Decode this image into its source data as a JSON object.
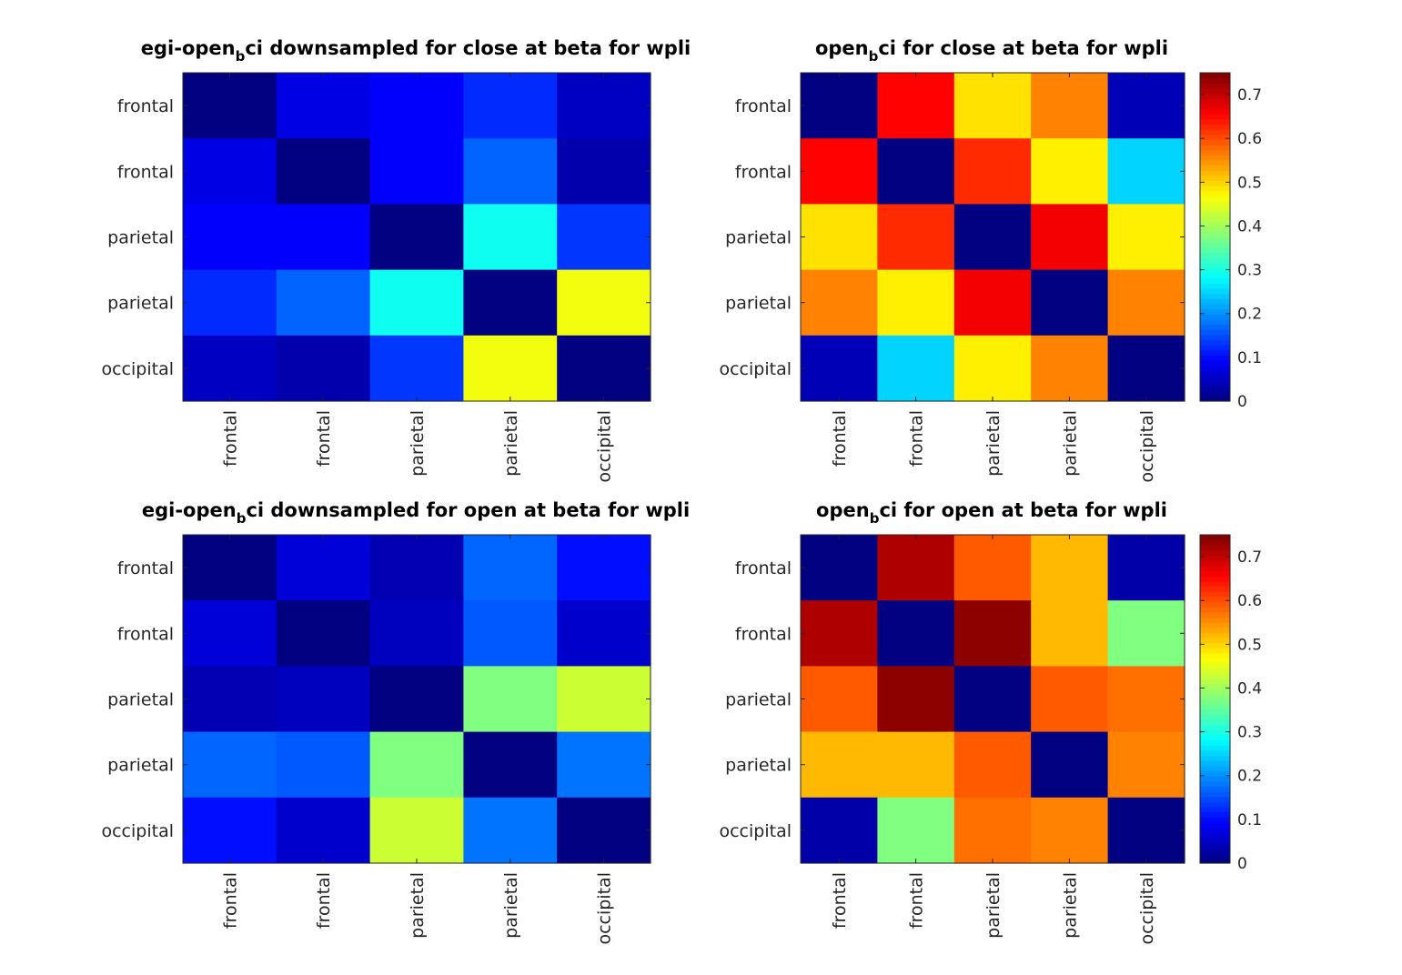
{
  "chart_data": [
    {
      "type": "heatmap",
      "title": "egi-open_bci downsampled for close at beta for wpli",
      "x_categories": [
        "frontal",
        "frontal",
        "parietal",
        "parietal",
        "occipital"
      ],
      "y_categories": [
        "frontal",
        "frontal",
        "parietal",
        "parietal",
        "occipital"
      ],
      "clim": [
        0,
        0.09
      ],
      "colormap": "jet",
      "colorbar": false,
      "values": [
        [
          0.0,
          0.009,
          0.011,
          0.015,
          0.006
        ],
        [
          0.009,
          0.0,
          0.011,
          0.02,
          0.004
        ],
        [
          0.011,
          0.011,
          0.0,
          0.035,
          0.016
        ],
        [
          0.015,
          0.02,
          0.035,
          0.0,
          0.055
        ],
        [
          0.006,
          0.004,
          0.016,
          0.055,
          0.0
        ]
      ]
    },
    {
      "type": "heatmap",
      "title": "open_bci for close at beta for wpli",
      "x_categories": [
        "frontal",
        "frontal",
        "parietal",
        "parietal",
        "occipital"
      ],
      "y_categories": [
        "frontal",
        "frontal",
        "parietal",
        "parietal",
        "occipital"
      ],
      "clim": [
        0,
        0.75
      ],
      "colormap": "jet",
      "colorbar": true,
      "colorbar_ticks": [
        "0",
        "0.1",
        "0.2",
        "0.3",
        "0.4",
        "0.5",
        "0.6",
        "0.7"
      ],
      "values": [
        [
          0.0,
          0.655,
          0.49,
          0.56,
          0.04
        ],
        [
          0.655,
          0.0,
          0.625,
          0.48,
          0.25
        ],
        [
          0.49,
          0.625,
          0.0,
          0.665,
          0.48
        ],
        [
          0.56,
          0.48,
          0.665,
          0.0,
          0.56
        ],
        [
          0.04,
          0.25,
          0.48,
          0.56,
          0.0
        ]
      ]
    },
    {
      "type": "heatmap",
      "title": "egi-open_bci downsampled for open at beta for wpli",
      "x_categories": [
        "frontal",
        "frontal",
        "parietal",
        "parietal",
        "occipital"
      ],
      "y_categories": [
        "frontal",
        "frontal",
        "parietal",
        "parietal",
        "occipital"
      ],
      "clim": [
        0,
        0.08
      ],
      "colormap": "jet",
      "colorbar": false,
      "values": [
        [
          0.0,
          0.007,
          0.004,
          0.018,
          0.011
        ],
        [
          0.007,
          0.0,
          0.005,
          0.017,
          0.006
        ],
        [
          0.004,
          0.005,
          0.0,
          0.04,
          0.046
        ],
        [
          0.018,
          0.017,
          0.04,
          0.0,
          0.019
        ],
        [
          0.011,
          0.006,
          0.046,
          0.019,
          0.0
        ]
      ]
    },
    {
      "type": "heatmap",
      "title": "open_bci for open at beta for wpli",
      "x_categories": [
        "frontal",
        "frontal",
        "parietal",
        "parietal",
        "occipital"
      ],
      "y_categories": [
        "frontal",
        "frontal",
        "parietal",
        "parietal",
        "occipital"
      ],
      "clim": [
        0,
        0.75
      ],
      "colormap": "jet",
      "colorbar": true,
      "colorbar_ticks": [
        "0",
        "0.1",
        "0.2",
        "0.3",
        "0.4",
        "0.5",
        "0.6",
        "0.7"
      ],
      "values": [
        [
          0.0,
          0.715,
          0.59,
          0.52,
          0.03
        ],
        [
          0.715,
          0.0,
          0.74,
          0.52,
          0.375
        ],
        [
          0.59,
          0.74,
          0.0,
          0.59,
          0.575
        ],
        [
          0.52,
          0.52,
          0.59,
          0.0,
          0.56
        ],
        [
          0.03,
          0.375,
          0.575,
          0.56,
          0.0
        ]
      ]
    }
  ]
}
